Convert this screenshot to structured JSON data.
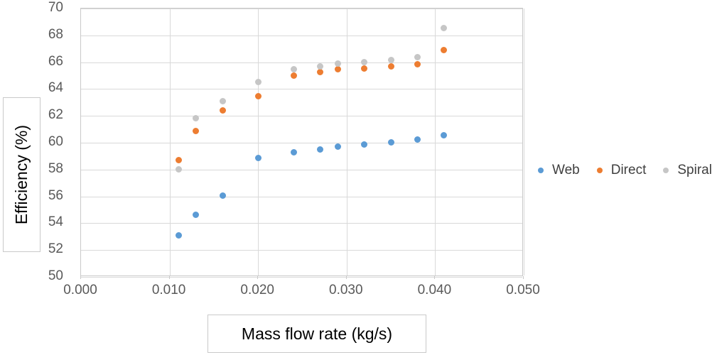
{
  "chart_data": {
    "type": "scatter",
    "title": "",
    "xlabel": "Mass flow rate (kg/s)",
    "ylabel": "Efficiency (%)",
    "xlim": [
      0,
      0.05
    ],
    "ylim": [
      50,
      70
    ],
    "grid": true,
    "legend_position": "right-middle",
    "x_tick_values": [
      0,
      0.01,
      0.02,
      0.03,
      0.04,
      0.05
    ],
    "x_tick_labels": [
      "0.000",
      "0.010",
      "0.020",
      "0.030",
      "0.040",
      "0.050"
    ],
    "y_tick_values": [
      50,
      52,
      54,
      56,
      58,
      60,
      62,
      64,
      66,
      68,
      70
    ],
    "y_tick_labels": [
      "50",
      "52",
      "54",
      "56",
      "58",
      "60",
      "62",
      "64",
      "66",
      "68",
      "70"
    ],
    "x": [
      0.011,
      0.013,
      0.016,
      0.02,
      0.024,
      0.027,
      0.029,
      0.032,
      0.035,
      0.038,
      0.041
    ],
    "series": [
      {
        "name": "Web",
        "color": "#5b9bd5",
        "values": [
          53.1,
          54.65,
          56.05,
          58.85,
          59.3,
          59.5,
          59.7,
          59.85,
          60.05,
          60.25,
          60.55
        ]
      },
      {
        "name": "Direct",
        "color": "#ed7d31",
        "values": [
          58.7,
          60.85,
          62.4,
          63.45,
          65.0,
          65.25,
          65.45,
          65.55,
          65.7,
          65.85,
          66.9
        ]
      },
      {
        "name": "Spiral",
        "color": "#c6c6c6",
        "values": [
          58.0,
          61.8,
          63.1,
          64.5,
          65.45,
          65.7,
          65.9,
          66.0,
          66.15,
          66.35,
          68.55
        ]
      }
    ]
  },
  "colors": {
    "gridline": "#d9d9d9",
    "plot_border": "#c9c9c9",
    "tick_label": "#595959",
    "axis_title": "#000000",
    "legend_text": "#404040",
    "background": "#ffffff"
  }
}
